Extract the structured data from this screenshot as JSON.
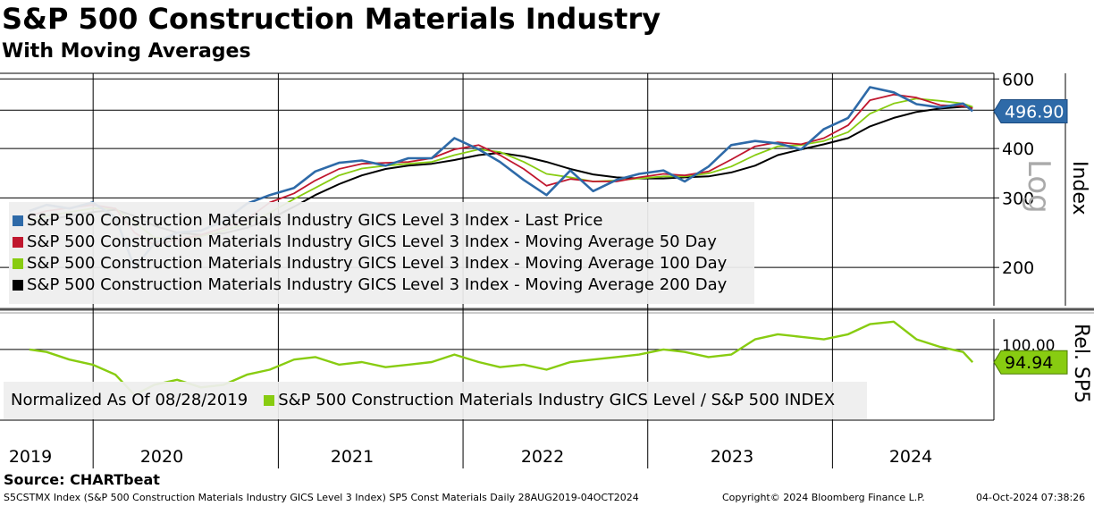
{
  "title": "S&P 500 Construction Materials Industry",
  "subtitle": "With Moving Averages",
  "source": "Source: CHARTbeat",
  "footer": {
    "left": "S5CSTMX Index (S&P 500 Construction Materials Industry GICS Level 3 Index) SP5 Const Materials  Daily 28AUG2019-04OCT2024",
    "middle": "Copyright© 2024 Bloomberg Finance L.P.",
    "right": "04-Oct-2024 07:38:26"
  },
  "colors": {
    "price": "#2e6aa8",
    "ma50": "#c0172e",
    "ma100": "#88cc11",
    "ma200": "#000000",
    "relative": "#88cc11"
  },
  "chart_data": [
    {
      "type": "line",
      "panel": "top",
      "y_axis_label": "Index",
      "y_scale_label": "Log",
      "y_scale": "log",
      "ylim": [
        160,
        620
      ],
      "y_ticks": [
        200,
        300,
        400,
        500,
        600
      ],
      "y_tick_labels": [
        "200",
        "300",
        "400",
        "",
        "600"
      ],
      "last_value_label": "496.90",
      "x_ticks": [
        "2019",
        "2020",
        "2021",
        "2022",
        "2023",
        "2024"
      ],
      "legend": [
        "S&P 500 Construction Materials Industry GICS Level 3 Index - Last Price",
        "S&P 500 Construction Materials Industry GICS Level 3 Index - Moving Average 50 Day",
        "S&P 500 Construction Materials Industry GICS Level 3 Index - Moving Average 100 Day",
        "S&P 500 Construction Materials Industry GICS Level 3 Index - Moving Average 200 Day"
      ],
      "x": [
        "2019-08-28",
        "2019-10-01",
        "2019-11-15",
        "2019-12-31",
        "2020-02-14",
        "2020-03-23",
        "2020-05-01",
        "2020-06-15",
        "2020-08-01",
        "2020-09-15",
        "2020-10-31",
        "2020-12-15",
        "2021-02-01",
        "2021-03-15",
        "2021-05-01",
        "2021-06-15",
        "2021-08-01",
        "2021-09-15",
        "2021-10-31",
        "2021-12-15",
        "2022-02-01",
        "2022-03-15",
        "2022-05-01",
        "2022-06-15",
        "2022-08-01",
        "2022-09-15",
        "2022-10-31",
        "2022-12-15",
        "2023-02-01",
        "2023-03-15",
        "2023-05-01",
        "2023-06-15",
        "2023-08-01",
        "2023-09-15",
        "2023-10-31",
        "2023-12-15",
        "2024-02-01",
        "2024-03-15",
        "2024-05-01",
        "2024-06-15",
        "2024-08-01",
        "2024-09-15",
        "2024-10-04"
      ],
      "series": [
        {
          "name": "S&P 500 Construction Materials Industry GICS Level 3 Index - Last Price",
          "values": [
            278,
            288,
            282,
            292,
            268,
            200,
            230,
            245,
            248,
            262,
            290,
            305,
            318,
            350,
            368,
            373,
            362,
            378,
            378,
            425,
            398,
            370,
            333,
            305,
            352,
            312,
            333,
            345,
            352,
            330,
            360,
            408,
            418,
            412,
            398,
            448,
            478,
            572,
            555,
            518,
            508,
            520,
            497
          ]
        },
        {
          "name": "S&P 500 Construction Materials Industry GICS Level 3 Index - Moving Average 50 Day",
          "values": [
            270,
            278,
            283,
            288,
            282,
            245,
            228,
            235,
            242,
            252,
            265,
            292,
            308,
            332,
            355,
            366,
            368,
            370,
            378,
            398,
            408,
            385,
            355,
            322,
            335,
            330,
            330,
            338,
            345,
            342,
            350,
            375,
            405,
            415,
            410,
            425,
            458,
            530,
            548,
            538,
            515,
            512,
            505
          ]
        },
        {
          "name": "S&P 500 Construction Materials Industry GICS Level 3 Index - Moving Average 100 Day",
          "values": [
            262,
            270,
            276,
            282,
            282,
            260,
            238,
            236,
            240,
            248,
            258,
            275,
            298,
            318,
            342,
            356,
            362,
            366,
            370,
            385,
            398,
            392,
            370,
            345,
            338,
            330,
            332,
            336,
            340,
            340,
            346,
            360,
            385,
            405,
            408,
            418,
            440,
            490,
            520,
            535,
            528,
            520,
            510
          ]
        },
        {
          "name": "S&P 500 Construction Materials Industry GICS Level 3 Index - Moving Average 200 Day",
          "values": [
            258,
            264,
            270,
            276,
            280,
            270,
            255,
            245,
            242,
            244,
            252,
            265,
            285,
            305,
            325,
            342,
            355,
            362,
            366,
            374,
            385,
            390,
            382,
            370,
            355,
            344,
            338,
            336,
            336,
            338,
            340,
            348,
            362,
            385,
            398,
            410,
            425,
            455,
            478,
            495,
            505,
            510,
            508
          ]
        }
      ]
    },
    {
      "type": "line",
      "panel": "bottom",
      "y_axis_label": "Rel. SP5",
      "ylim": [
        72,
        112
      ],
      "y_ticks": [
        100
      ],
      "y_tick_labels": [
        "100.00"
      ],
      "last_value_label": "94.94",
      "legend": [
        "Normalized As Of 08/28/2019",
        "S&P 500 Construction Materials Industry GICS Level / S&P 500 INDEX"
      ],
      "x": [
        "2019-08-28",
        "2019-10-01",
        "2019-11-15",
        "2019-12-31",
        "2020-02-14",
        "2020-03-23",
        "2020-05-01",
        "2020-06-15",
        "2020-08-01",
        "2020-09-15",
        "2020-10-31",
        "2020-12-15",
        "2021-02-01",
        "2021-03-15",
        "2021-05-01",
        "2021-06-15",
        "2021-08-01",
        "2021-09-15",
        "2021-10-31",
        "2021-12-15",
        "2022-02-01",
        "2022-03-15",
        "2022-05-01",
        "2022-06-15",
        "2022-08-01",
        "2022-09-15",
        "2022-10-31",
        "2022-12-15",
        "2023-02-01",
        "2023-03-15",
        "2023-05-01",
        "2023-06-15",
        "2023-08-01",
        "2023-09-15",
        "2023-10-31",
        "2023-12-15",
        "2024-02-01",
        "2024-03-15",
        "2024-05-01",
        "2024-06-15",
        "2024-08-01",
        "2024-09-15",
        "2024-10-04"
      ],
      "series": [
        {
          "name": "S&P 500 Construction Materials Industry GICS Level / S&P 500 INDEX",
          "values": [
            100,
            99,
            96,
            94,
            90,
            82,
            86,
            88,
            85,
            86,
            90,
            92,
            96,
            97,
            94,
            95,
            93,
            94,
            95,
            98,
            95,
            93,
            94,
            92,
            95,
            96,
            97,
            98,
            100,
            99,
            97,
            98,
            104,
            106,
            105,
            104,
            106,
            110,
            111,
            104,
            101,
            99,
            94.94
          ]
        }
      ]
    }
  ]
}
